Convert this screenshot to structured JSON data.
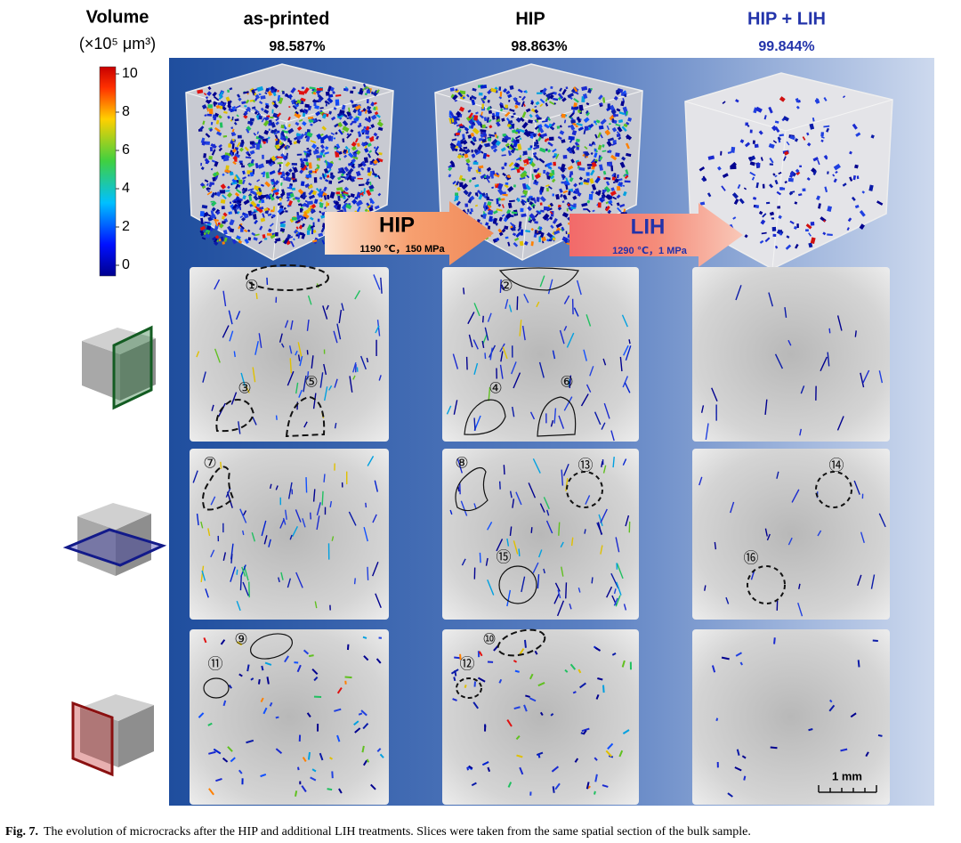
{
  "colorbar": {
    "title": "Volume",
    "unit": "(×10⁵ μm³)",
    "ticks": [
      "0",
      "2",
      "4",
      "6",
      "8",
      "10"
    ]
  },
  "columns": [
    {
      "label": "as-printed",
      "density": "98.587%"
    },
    {
      "label": "HIP",
      "density": "98.863%"
    },
    {
      "label": "HIP + LIH",
      "density": "99.844%"
    }
  ],
  "arrows": [
    {
      "label": "HIP",
      "conditions": "1190 ℃，150 MPa"
    },
    {
      "label": "LIH",
      "conditions": "1290 ℃，1 MPa"
    }
  ],
  "annotations": [
    "①",
    "②",
    "③",
    "④",
    "⑤",
    "⑥",
    "⑦",
    "⑧",
    "⑨",
    "⑩",
    "⑪",
    "⑫",
    "⑬",
    "⑭",
    "⑮",
    "⑯"
  ],
  "scale_bar": "1 mm",
  "caption": {
    "label": "Fig. 7.",
    "text": "The evolution of microcracks after the HIP and additional LIH treatments. Slices were taken from the same spatial section of the bulk sample."
  }
}
